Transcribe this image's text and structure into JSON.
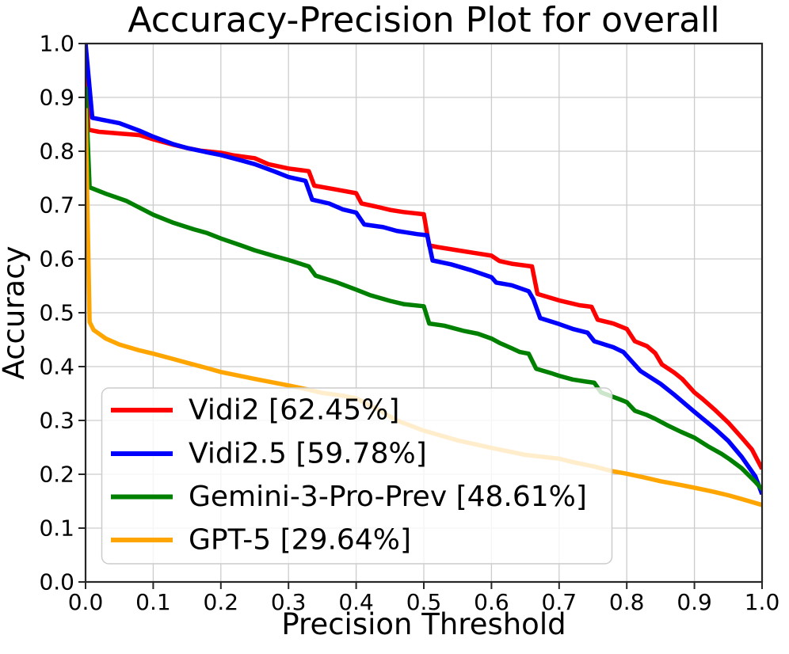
{
  "chart_data": {
    "type": "line",
    "title": "Accuracy-Precision Plot for overall",
    "xlabel": "Precision Threshold",
    "ylabel": "Accuracy",
    "xlim": [
      0.0,
      1.0
    ],
    "ylim": [
      0.0,
      1.0
    ],
    "grid": true,
    "legend_position": "lower left",
    "x_ticks": [
      "0.0",
      "0.1",
      "0.2",
      "0.3",
      "0.4",
      "0.5",
      "0.6",
      "0.7",
      "0.8",
      "0.9",
      "1.0"
    ],
    "y_ticks": [
      "0.0",
      "0.1",
      "0.2",
      "0.3",
      "0.4",
      "0.5",
      "0.6",
      "0.7",
      "0.8",
      "0.9",
      "1.0"
    ],
    "colors": {
      "grid": "#cccccc",
      "spine": "#262626",
      "legend_border": "#cccccc",
      "legend_fill": "#ffffff",
      "background": "#ffffff"
    },
    "series": [
      {
        "name": "Vidi2",
        "legend_label": "Vidi2 [62.45%]",
        "auc_pct": 62.45,
        "color": "#ff0000",
        "points": [
          [
            0,
            1
          ],
          [
            0.004,
            0.84
          ],
          [
            0.02,
            0.836
          ],
          [
            0.05,
            0.833
          ],
          [
            0.08,
            0.83
          ],
          [
            0.1,
            0.822
          ],
          [
            0.13,
            0.812
          ],
          [
            0.15,
            0.806
          ],
          [
            0.17,
            0.801
          ],
          [
            0.2,
            0.797
          ],
          [
            0.22,
            0.792
          ],
          [
            0.25,
            0.787
          ],
          [
            0.27,
            0.776
          ],
          [
            0.3,
            0.768
          ],
          [
            0.33,
            0.763
          ],
          [
            0.338,
            0.736
          ],
          [
            0.37,
            0.729
          ],
          [
            0.4,
            0.722
          ],
          [
            0.408,
            0.703
          ],
          [
            0.43,
            0.697
          ],
          [
            0.45,
            0.691
          ],
          [
            0.47,
            0.687
          ],
          [
            0.5,
            0.683
          ],
          [
            0.508,
            0.625
          ],
          [
            0.52,
            0.622
          ],
          [
            0.55,
            0.616
          ],
          [
            0.58,
            0.61
          ],
          [
            0.6,
            0.606
          ],
          [
            0.612,
            0.596
          ],
          [
            0.63,
            0.591
          ],
          [
            0.66,
            0.586
          ],
          [
            0.668,
            0.535
          ],
          [
            0.7,
            0.523
          ],
          [
            0.73,
            0.514
          ],
          [
            0.748,
            0.511
          ],
          [
            0.757,
            0.487
          ],
          [
            0.78,
            0.48
          ],
          [
            0.8,
            0.47
          ],
          [
            0.812,
            0.447
          ],
          [
            0.83,
            0.438
          ],
          [
            0.842,
            0.425
          ],
          [
            0.852,
            0.404
          ],
          [
            0.87,
            0.389
          ],
          [
            0.882,
            0.377
          ],
          [
            0.9,
            0.352
          ],
          [
            0.912,
            0.34
          ],
          [
            0.93,
            0.32
          ],
          [
            0.95,
            0.296
          ],
          [
            0.97,
            0.268
          ],
          [
            0.985,
            0.246
          ],
          [
            1,
            0.21
          ]
        ]
      },
      {
        "name": "Vidi2.5",
        "legend_label": "Vidi2.5 [59.78%]",
        "auc_pct": 59.78,
        "color": "#0000ff",
        "points": [
          [
            0,
            1
          ],
          [
            0.01,
            0.862
          ],
          [
            0.03,
            0.857
          ],
          [
            0.05,
            0.852
          ],
          [
            0.08,
            0.838
          ],
          [
            0.1,
            0.827
          ],
          [
            0.13,
            0.813
          ],
          [
            0.15,
            0.806
          ],
          [
            0.18,
            0.798
          ],
          [
            0.2,
            0.793
          ],
          [
            0.23,
            0.783
          ],
          [
            0.25,
            0.776
          ],
          [
            0.28,
            0.762
          ],
          [
            0.3,
            0.752
          ],
          [
            0.325,
            0.745
          ],
          [
            0.335,
            0.71
          ],
          [
            0.36,
            0.703
          ],
          [
            0.38,
            0.692
          ],
          [
            0.4,
            0.686
          ],
          [
            0.412,
            0.664
          ],
          [
            0.44,
            0.659
          ],
          [
            0.46,
            0.652
          ],
          [
            0.49,
            0.646
          ],
          [
            0.505,
            0.644
          ],
          [
            0.513,
            0.597
          ],
          [
            0.54,
            0.59
          ],
          [
            0.57,
            0.579
          ],
          [
            0.6,
            0.566
          ],
          [
            0.607,
            0.556
          ],
          [
            0.63,
            0.551
          ],
          [
            0.655,
            0.54
          ],
          [
            0.662,
            0.525
          ],
          [
            0.672,
            0.49
          ],
          [
            0.7,
            0.479
          ],
          [
            0.72,
            0.47
          ],
          [
            0.742,
            0.463
          ],
          [
            0.752,
            0.447
          ],
          [
            0.78,
            0.436
          ],
          [
            0.795,
            0.427
          ],
          [
            0.805,
            0.413
          ],
          [
            0.82,
            0.392
          ],
          [
            0.85,
            0.368
          ],
          [
            0.87,
            0.348
          ],
          [
            0.9,
            0.316
          ],
          [
            0.93,
            0.285
          ],
          [
            0.95,
            0.262
          ],
          [
            0.97,
            0.232
          ],
          [
            0.99,
            0.196
          ],
          [
            1,
            0.163
          ]
        ]
      },
      {
        "name": "Gemini-3-Pro-Prev",
        "legend_label": "Gemini-3-Pro-Prev [48.61%]",
        "auc_pct": 48.61,
        "color": "#008000",
        "points": [
          [
            0,
            0.92
          ],
          [
            0.006,
            0.733
          ],
          [
            0.03,
            0.721
          ],
          [
            0.06,
            0.708
          ],
          [
            0.1,
            0.682
          ],
          [
            0.13,
            0.667
          ],
          [
            0.16,
            0.655
          ],
          [
            0.18,
            0.648
          ],
          [
            0.2,
            0.638
          ],
          [
            0.23,
            0.625
          ],
          [
            0.25,
            0.616
          ],
          [
            0.28,
            0.605
          ],
          [
            0.3,
            0.598
          ],
          [
            0.33,
            0.586
          ],
          [
            0.34,
            0.569
          ],
          [
            0.37,
            0.557
          ],
          [
            0.4,
            0.543
          ],
          [
            0.42,
            0.533
          ],
          [
            0.45,
            0.522
          ],
          [
            0.47,
            0.516
          ],
          [
            0.5,
            0.512
          ],
          [
            0.508,
            0.48
          ],
          [
            0.53,
            0.476
          ],
          [
            0.56,
            0.466
          ],
          [
            0.58,
            0.461
          ],
          [
            0.6,
            0.452
          ],
          [
            0.612,
            0.444
          ],
          [
            0.63,
            0.434
          ],
          [
            0.642,
            0.427
          ],
          [
            0.655,
            0.424
          ],
          [
            0.666,
            0.396
          ],
          [
            0.69,
            0.387
          ],
          [
            0.7,
            0.383
          ],
          [
            0.72,
            0.376
          ],
          [
            0.74,
            0.372
          ],
          [
            0.752,
            0.37
          ],
          [
            0.762,
            0.352
          ],
          [
            0.775,
            0.346
          ],
          [
            0.79,
            0.339
          ],
          [
            0.8,
            0.334
          ],
          [
            0.812,
            0.318
          ],
          [
            0.83,
            0.31
          ],
          [
            0.842,
            0.303
          ],
          [
            0.86,
            0.291
          ],
          [
            0.88,
            0.279
          ],
          [
            0.9,
            0.268
          ],
          [
            0.92,
            0.252
          ],
          [
            0.94,
            0.238
          ],
          [
            0.952,
            0.228
          ],
          [
            0.97,
            0.211
          ],
          [
            0.99,
            0.186
          ],
          [
            1,
            0.172
          ]
        ]
      },
      {
        "name": "GPT-5",
        "legend_label": "GPT-5 [29.64%]",
        "auc_pct": 29.64,
        "color": "#ffa500",
        "points": [
          [
            0,
            0.88
          ],
          [
            0.006,
            0.483
          ],
          [
            0.012,
            0.468
          ],
          [
            0.03,
            0.452
          ],
          [
            0.05,
            0.441
          ],
          [
            0.08,
            0.43
          ],
          [
            0.1,
            0.424
          ],
          [
            0.13,
            0.414
          ],
          [
            0.15,
            0.407
          ],
          [
            0.18,
            0.397
          ],
          [
            0.2,
            0.39
          ],
          [
            0.25,
            0.377
          ],
          [
            0.3,
            0.365
          ],
          [
            0.33,
            0.357
          ],
          [
            0.35,
            0.351
          ],
          [
            0.38,
            0.346
          ],
          [
            0.4,
            0.341
          ],
          [
            0.43,
            0.322
          ],
          [
            0.46,
            0.3
          ],
          [
            0.5,
            0.281
          ],
          [
            0.55,
            0.263
          ],
          [
            0.6,
            0.249
          ],
          [
            0.65,
            0.236
          ],
          [
            0.7,
            0.229
          ],
          [
            0.722,
            0.222
          ],
          [
            0.75,
            0.215
          ],
          [
            0.778,
            0.206
          ],
          [
            0.8,
            0.201
          ],
          [
            0.83,
            0.193
          ],
          [
            0.85,
            0.187
          ],
          [
            0.88,
            0.18
          ],
          [
            0.9,
            0.175
          ],
          [
            0.93,
            0.167
          ],
          [
            0.95,
            0.161
          ],
          [
            0.97,
            0.154
          ],
          [
            1,
            0.143
          ]
        ]
      }
    ]
  }
}
